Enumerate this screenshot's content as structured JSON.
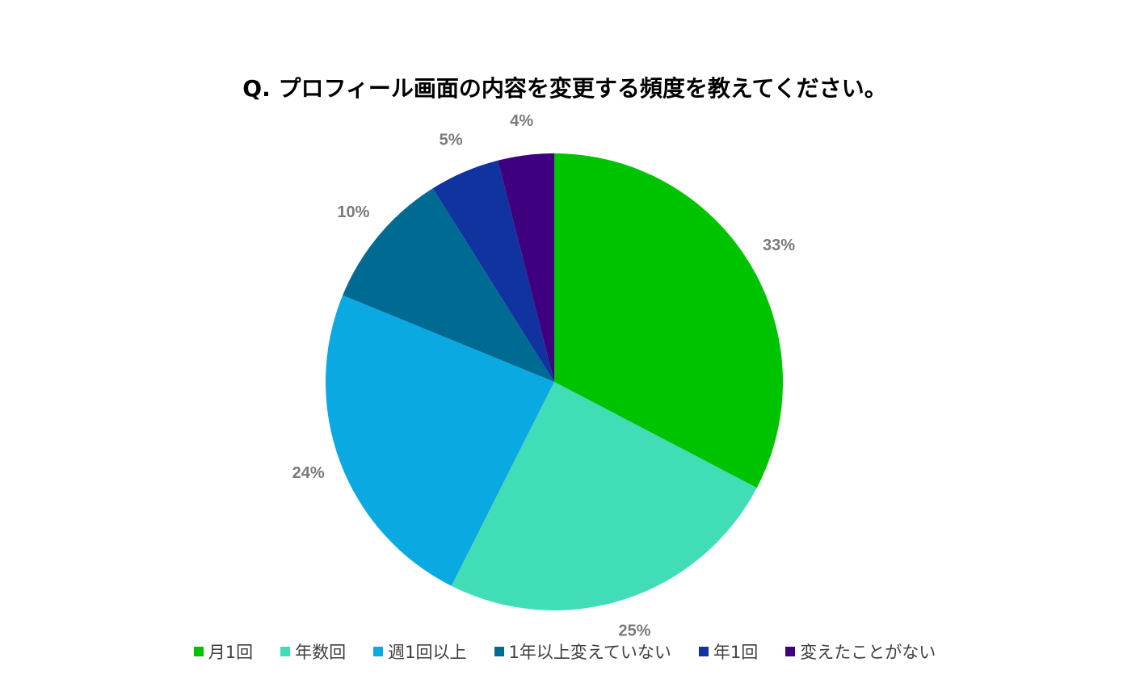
{
  "chart_data": {
    "type": "pie",
    "title": "Q. プロフィール画面の内容を変更する頻度を教えてください。",
    "slices": [
      {
        "label": "月1回",
        "value": 33,
        "display": "33%",
        "color": "#00C300"
      },
      {
        "label": "年数回",
        "value": 25,
        "display": "25%",
        "color": "#40DDB6"
      },
      {
        "label": "週1回以上",
        "value": 24,
        "display": "24%",
        "color": "#0BA9E1"
      },
      {
        "label": "1年以上変えていない",
        "value": 10,
        "display": "10%",
        "color": "#006B92"
      },
      {
        "label": "年1回",
        "value": 5,
        "display": "5%",
        "color": "#1133A0"
      },
      {
        "label": "変えたことがない",
        "value": 4,
        "display": "4%",
        "color": "#3E007E"
      }
    ],
    "start_angle": "12 o'clock",
    "direction": "clockwise",
    "legend_position": "bottom"
  }
}
